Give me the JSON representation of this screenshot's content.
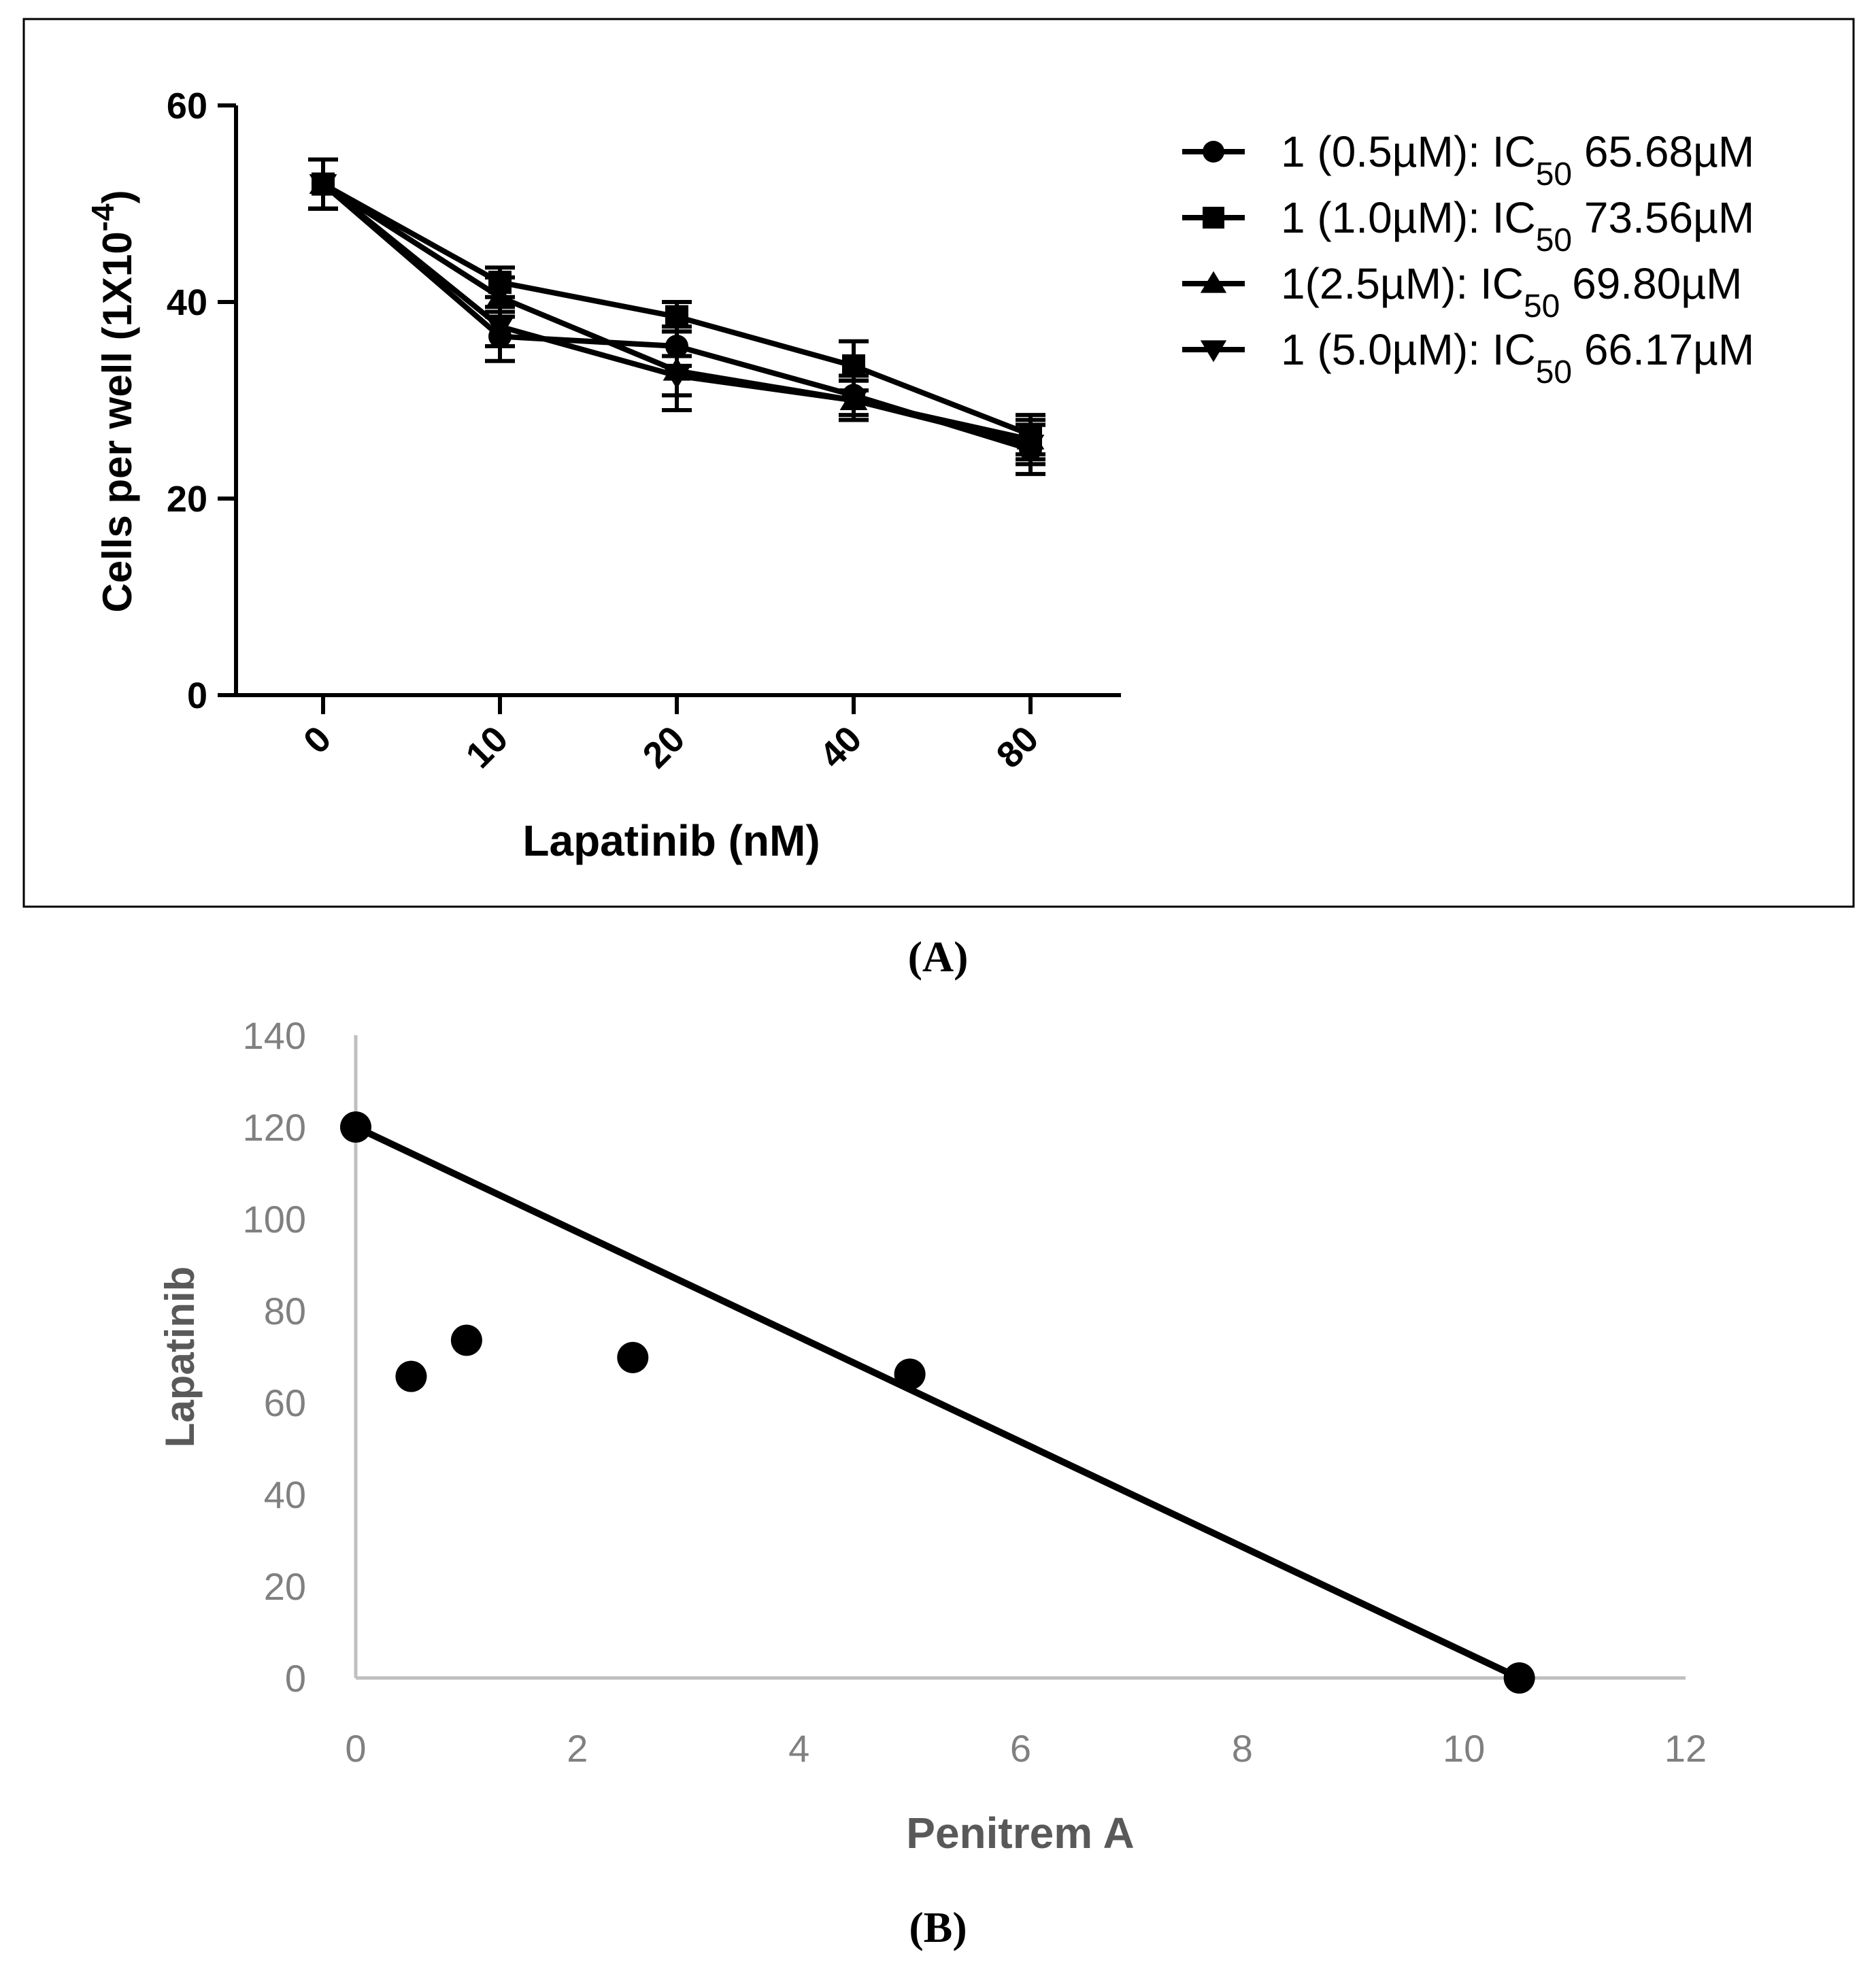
{
  "chart_data": [
    {
      "type": "line",
      "panel_label": "(A)",
      "title": "",
      "xlabel": "Lapatinib (nM)",
      "ylabel_main": "Cells per well (1X10",
      "ylabel_exp": "-4",
      "ylabel_close": ")",
      "categories": [
        "0",
        "10",
        "20",
        "40",
        "80"
      ],
      "y_ticks": [
        "0",
        "20",
        "40",
        "60"
      ],
      "ylim": [
        0,
        60
      ],
      "grid": false,
      "legend": "top-right",
      "series": [
        {
          "name": "1 (0.5µM): IC50 65.68µM",
          "label_pre": "1 (0.5µM): IC",
          "label_sub": "50",
          "label_post": " 65.68µM",
          "marker": "circle",
          "values": [
            52,
            36.5,
            35.5,
            30.5,
            25
          ],
          "errors": [
            2.5,
            2.5,
            2,
            2,
            2.5
          ]
        },
        {
          "name": "1 (1.0µM): IC50 73.56µM",
          "label_pre": "1 (1.0µM): IC",
          "label_sub": "50",
          "label_post": " 73.56µM",
          "marker": "square",
          "values": [
            52,
            42,
            38.5,
            33.5,
            26.5
          ],
          "errors": [
            2.5,
            1.5,
            1.5,
            2.5,
            2
          ]
        },
        {
          "name": "1(2.5µM): IC50 69.80µM",
          "label_pre": "1(2.5µM): IC",
          "label_sub": "50",
          "label_post": " 69.80µM",
          "marker": "triangle-up",
          "values": [
            52,
            40.5,
            33,
            30,
            26
          ],
          "errors": [
            2.5,
            2,
            4,
            2,
            2
          ]
        },
        {
          "name": "1 (5.0µM): IC50 66.17µM",
          "label_pre": "1 (5.0µM): IC",
          "label_sub": "50",
          "label_post": " 66.17µM",
          "marker": "triangle-down",
          "values": [
            52,
            37.5,
            32.5,
            30,
            25.5
          ],
          "errors": [
            2.5,
            2,
            2,
            2,
            2
          ]
        }
      ]
    },
    {
      "type": "scatter",
      "panel_label": "(B)",
      "title": "",
      "xlabel": "Penitrem A",
      "ylabel": "Lapatinib",
      "x_ticks": [
        "0",
        "2",
        "4",
        "6",
        "8",
        "10",
        "12"
      ],
      "y_ticks": [
        "0",
        "20",
        "40",
        "60",
        "80",
        "100",
        "120",
        "140"
      ],
      "xlim": [
        0,
        12
      ],
      "ylim": [
        0,
        140
      ],
      "grid": false,
      "points": [
        {
          "x": 0,
          "y": 120
        },
        {
          "x": 0.5,
          "y": 65.68
        },
        {
          "x": 1.0,
          "y": 73.56
        },
        {
          "x": 2.5,
          "y": 69.8
        },
        {
          "x": 5.0,
          "y": 66.17
        },
        {
          "x": 10.5,
          "y": 0
        }
      ],
      "line": {
        "x": [
          0,
          10.5
        ],
        "y": [
          120,
          0
        ]
      }
    }
  ]
}
